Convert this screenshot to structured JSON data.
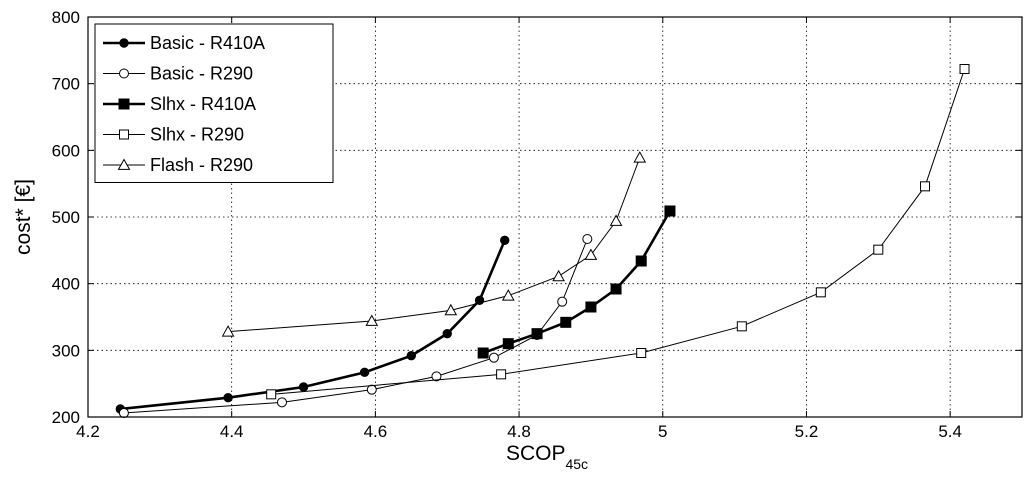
{
  "chart_data": {
    "type": "line",
    "xlabel": "SCOP",
    "xlabel_subscript": "45c",
    "ylabel": "cost* [€]",
    "xlim": [
      4.2,
      5.5
    ],
    "ylim": [
      200,
      800
    ],
    "xticks": [
      4.2,
      4.4,
      4.6,
      4.8,
      5,
      5.2,
      5.4
    ],
    "xtick_labels": [
      "4.2",
      "4.4",
      "4.6",
      "4.8",
      "5",
      "5.2",
      "5.4"
    ],
    "yticks": [
      200,
      300,
      400,
      500,
      600,
      700,
      800
    ],
    "ytick_labels": [
      "200",
      "300",
      "400",
      "500",
      "600",
      "700",
      "800"
    ],
    "grid": true,
    "legend_position": "top-left",
    "series": [
      {
        "name": "Basic - R410A",
        "marker": "filled-circle",
        "line_weight": "thick",
        "x": [
          4.245,
          4.395,
          4.5,
          4.585,
          4.65,
          4.7,
          4.745,
          4.78
        ],
        "y": [
          212,
          229,
          245,
          267,
          292,
          325,
          375,
          465
        ]
      },
      {
        "name": "Basic - R290",
        "marker": "open-circle",
        "line_weight": "thin",
        "x": [
          4.25,
          4.47,
          4.595,
          4.685,
          4.765,
          4.825,
          4.86,
          4.895
        ],
        "y": [
          206,
          222,
          241,
          261,
          289,
          323,
          373,
          467
        ]
      },
      {
        "name": "Slhx - R410A",
        "marker": "filled-square",
        "line_weight": "thick",
        "x": [
          4.75,
          4.785,
          4.825,
          4.865,
          4.9,
          4.935,
          4.97,
          5.01
        ],
        "y": [
          296,
          310,
          325,
          342,
          365,
          392,
          434,
          509
        ]
      },
      {
        "name": "Slhx - R290",
        "marker": "open-square",
        "line_weight": "thin",
        "x": [
          4.455,
          4.775,
          4.97,
          5.11,
          5.22,
          5.3,
          5.365,
          5.42
        ],
        "y": [
          234,
          264,
          296,
          336,
          387,
          451,
          546,
          722
        ]
      },
      {
        "name": "Flash - R290",
        "marker": "open-triangle",
        "line_weight": "thin",
        "x": [
          4.395,
          4.595,
          4.705,
          4.785,
          4.855,
          4.9,
          4.935,
          4.968
        ],
        "y": [
          328,
          344,
          360,
          382,
          411,
          443,
          494,
          589
        ]
      }
    ]
  }
}
